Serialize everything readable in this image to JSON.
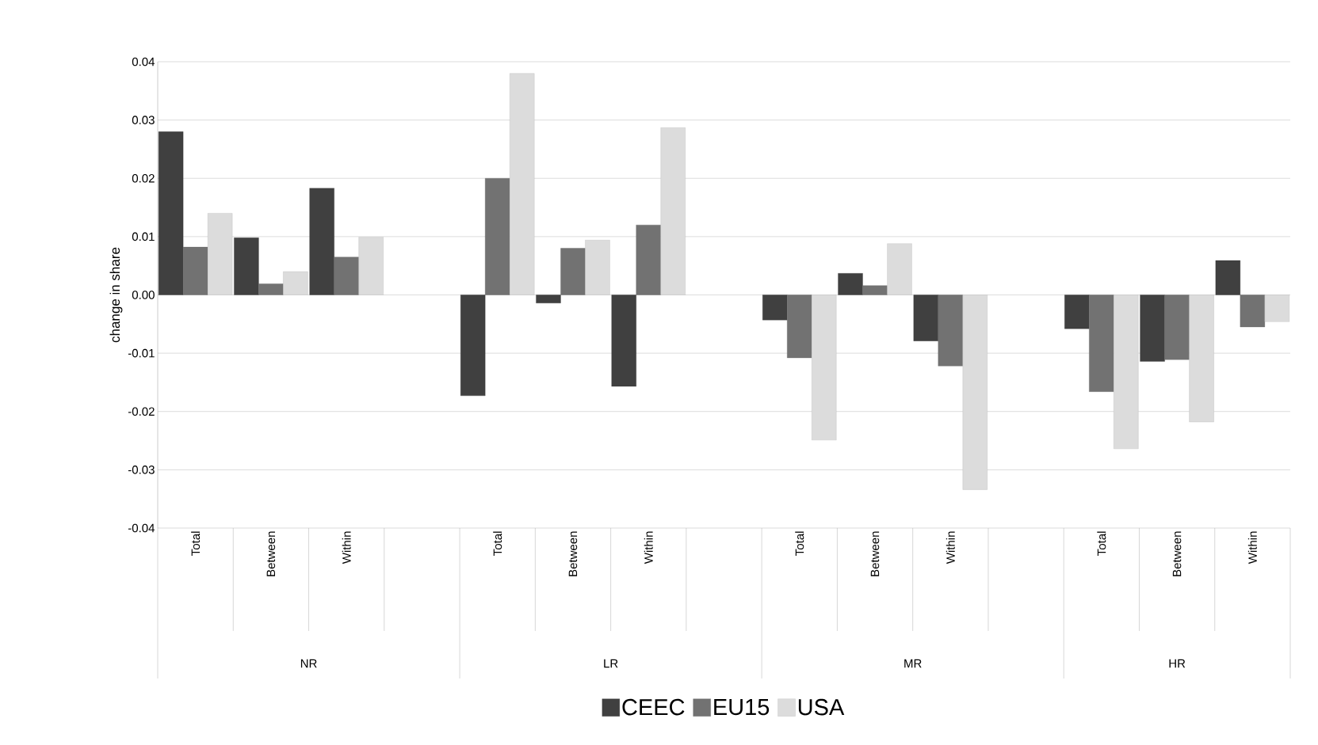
{
  "chart_data": {
    "type": "bar",
    "ylabel": "change in share",
    "categories": [
      "Total",
      "Between",
      "Within",
      null,
      "Total",
      "Between",
      "Within",
      null,
      "Total",
      "Between",
      "Within",
      null,
      "Total",
      "Between",
      "Within"
    ],
    "series": [
      {
        "name": "CEEC",
        "color": "#404040",
        "values": [
          0.028,
          0.0098,
          0.0183,
          null,
          -0.0173,
          -0.0014,
          -0.0157,
          null,
          -0.0043,
          0.0037,
          -0.0079,
          null,
          -0.0058,
          -0.0114,
          0.0059
        ]
      },
      {
        "name": "EU15",
        "color": "#727272",
        "values": [
          0.0082,
          0.0019,
          0.0065,
          null,
          0.02,
          0.008,
          0.012,
          null,
          -0.0108,
          0.0016,
          -0.0122,
          null,
          -0.0166,
          -0.0111,
          -0.0055
        ]
      },
      {
        "name": "USA",
        "color": "#dcdcdc",
        "values": [
          0.014,
          0.004,
          0.0099,
          null,
          0.038,
          0.0094,
          0.0287,
          null,
          -0.0249,
          0.0088,
          -0.0334,
          null,
          -0.0264,
          -0.0218,
          -0.0046
        ]
      }
    ],
    "annotations": [
      "NR",
      "LR",
      "MR",
      "HR"
    ],
    "ylim": [
      -0.04,
      0.04
    ],
    "yticks": [
      -0.04,
      -0.03,
      -0.02,
      -0.01,
      {
        "value": 0,
        "label": "0.00"
      },
      0.01,
      0.02,
      0.03,
      0.04
    ],
    "grid": "y",
    "legend": "bottom"
  }
}
